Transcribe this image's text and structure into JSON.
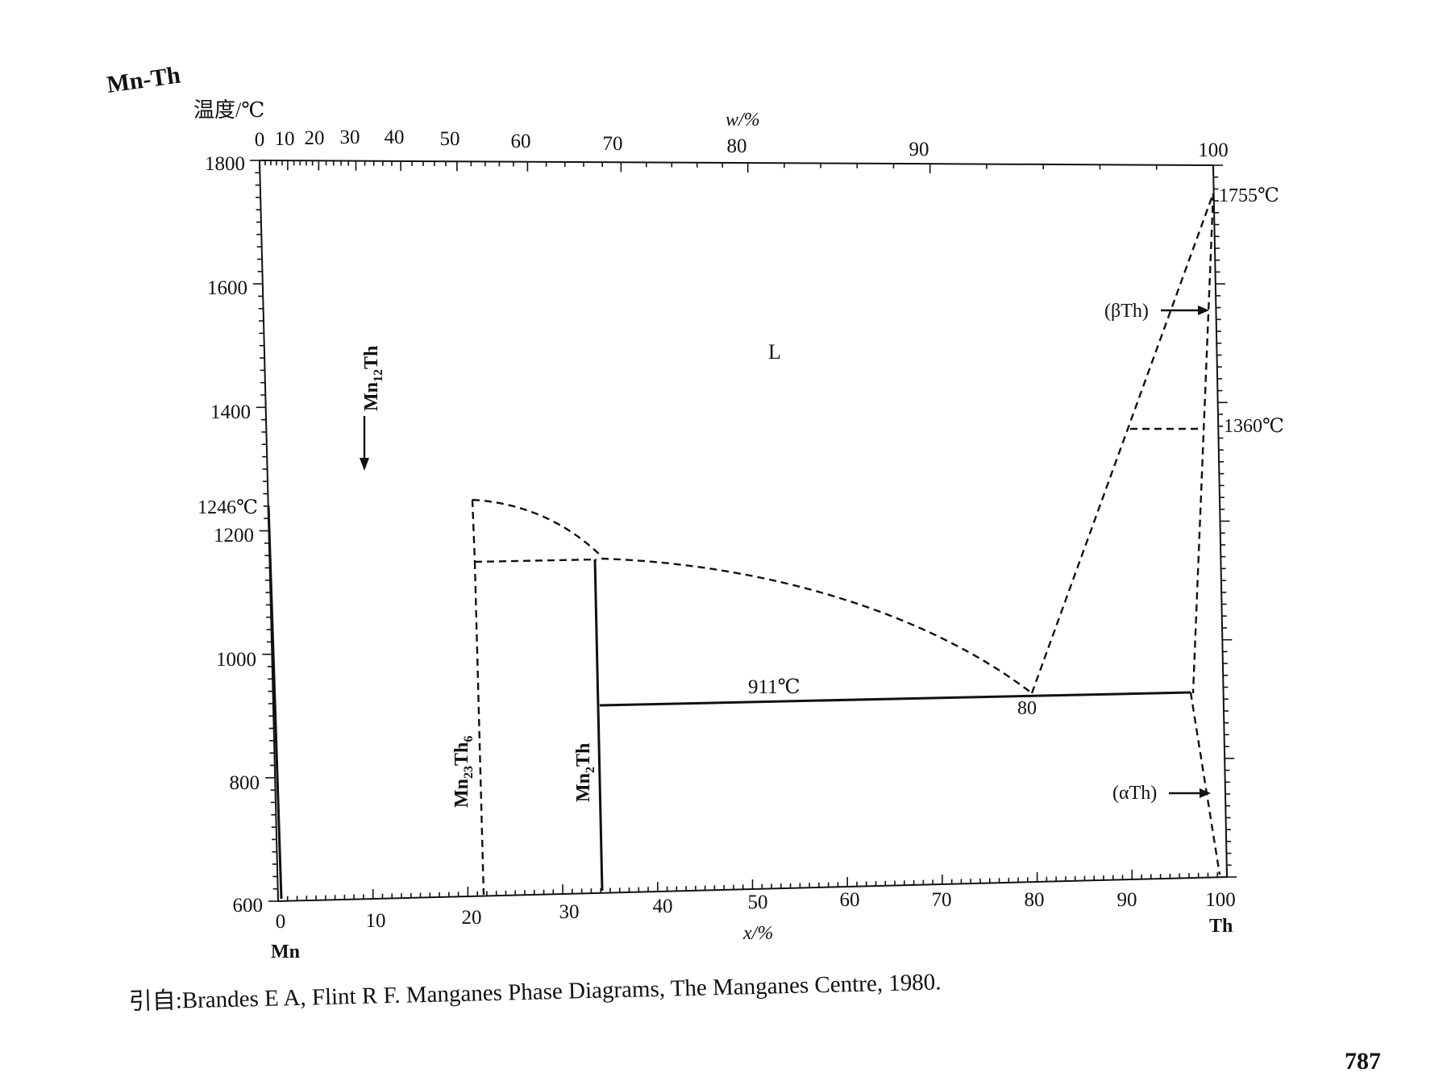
{
  "system_title": "Mn-Th",
  "y_axis": {
    "label": "温度/℃",
    "range": [
      600,
      1800
    ],
    "ticks": [
      600,
      800,
      1000,
      1200,
      1400,
      1600,
      1800
    ]
  },
  "top_axis": {
    "label": "w/%",
    "ticks": [
      {
        "text": "0",
        "at": 0
      },
      {
        "text": "10",
        "at": 2.95
      },
      {
        "text": "20",
        "at": 6.2
      },
      {
        "text": "30",
        "at": 10.1
      },
      {
        "text": "40",
        "at": 14.8
      },
      {
        "text": "50",
        "at": 20.7
      },
      {
        "text": "60",
        "at": 28.1
      },
      {
        "text": "70",
        "at": 37.9
      },
      {
        "text": "80",
        "at": 51.2
      },
      {
        "text": "90",
        "at": 70.3
      },
      {
        "text": "100",
        "at": 100
      }
    ]
  },
  "bottom_axis": {
    "label": "x/%",
    "ticks": [
      0,
      10,
      20,
      30,
      40,
      50,
      60,
      70,
      80,
      90,
      100
    ],
    "left_element": "Mn",
    "right_element": "Th"
  },
  "annotations": {
    "liquid": "L",
    "mn_melt": "1246℃",
    "th_melt": "1755℃",
    "th_transition": "1360℃",
    "eutectic_temp": "911℃",
    "eutectic_comp": "80",
    "beta_th": "(βTh)",
    "alpha_th": "(αTh)"
  },
  "phases": {
    "mn12th": {
      "base": "Mn",
      "sub1": "12",
      "mid": "Th"
    },
    "mn23th6": {
      "base": "Mn",
      "sub1": "23",
      "mid": "Th",
      "sub2": "6"
    },
    "mn2th": {
      "base": "Mn",
      "sub1": "2",
      "mid": "Th"
    }
  },
  "citation": "引自:Brandes E A, Flint R F. Manganes Phase Diagrams, The Manganes Centre, 1980.",
  "page_number": "787",
  "diagram_data": {
    "invariants": [
      {
        "label": "1246℃",
        "T": 1246,
        "x": 0
      },
      {
        "label": "1755℃",
        "T": 1755,
        "x": 100
      },
      {
        "label": "1360℃",
        "T": 1360
      },
      {
        "label": "911℃",
        "T": 911,
        "x": 80
      }
    ],
    "line_styles": {
      "measured": "solid",
      "estimated": "dashed"
    }
  }
}
